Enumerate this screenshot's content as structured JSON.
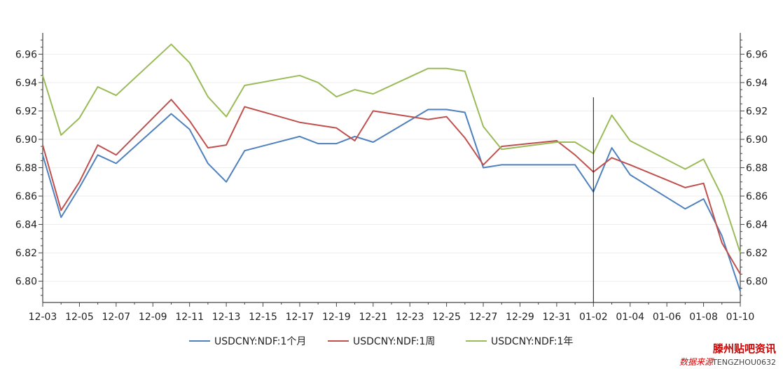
{
  "chart_data": {
    "type": "line",
    "x": [
      "12-03",
      "12-04",
      "12-05",
      "12-06",
      "12-07",
      "12-10",
      "12-11",
      "12-12",
      "12-13",
      "12-14",
      "12-17",
      "12-18",
      "12-19",
      "12-20",
      "12-21",
      "12-24",
      "12-25",
      "12-26",
      "12-27",
      "12-28",
      "12-31",
      "01-01",
      "01-02",
      "01-03",
      "01-04",
      "01-07",
      "01-08",
      "01-09",
      "01-10"
    ],
    "x_index": [
      0,
      1,
      2,
      3,
      4,
      7,
      8,
      9,
      10,
      11,
      14,
      15,
      16,
      17,
      18,
      21,
      22,
      23,
      24,
      25,
      28,
      29,
      30,
      31,
      32,
      35,
      36,
      37,
      38
    ],
    "x_tick_labels": [
      "12-03",
      "12-05",
      "12-07",
      "12-09",
      "12-11",
      "12-13",
      "12-15",
      "12-17",
      "12-19",
      "12-21",
      "12-23",
      "12-25",
      "12-27",
      "12-29",
      "12-31",
      "01-02",
      "01-04",
      "01-06",
      "01-08",
      "01-10"
    ],
    "series": [
      {
        "name": "USDCNY:NDF:1个月",
        "color": "#4f81bd",
        "values": [
          6.889,
          6.845,
          6.866,
          6.889,
          6.883,
          6.918,
          6.907,
          6.883,
          6.87,
          6.892,
          6.902,
          6.897,
          6.897,
          6.902,
          6.898,
          6.921,
          6.921,
          6.919,
          6.88,
          6.882,
          6.882,
          6.882,
          6.863,
          6.894,
          6.875,
          6.851,
          6.858,
          6.832,
          6.793
        ]
      },
      {
        "name": "USDCNY:NDF:1周",
        "color": "#c0504d",
        "values": [
          6.896,
          6.85,
          6.87,
          6.896,
          6.889,
          6.928,
          6.913,
          6.894,
          6.896,
          6.923,
          6.912,
          6.91,
          6.908,
          6.899,
          6.92,
          6.914,
          6.916,
          6.901,
          6.882,
          6.895,
          6.899,
          6.889,
          6.877,
          6.887,
          6.882,
          6.866,
          6.869,
          6.827,
          6.805
        ]
      },
      {
        "name": "USDCNY:NDF:1年",
        "color": "#9bbb59",
        "values": [
          6.945,
          6.903,
          6.915,
          6.937,
          6.931,
          6.967,
          6.954,
          6.93,
          6.916,
          6.938,
          6.945,
          6.94,
          6.93,
          6.935,
          6.932,
          6.95,
          6.95,
          6.948,
          6.909,
          6.893,
          6.898,
          6.898,
          6.89,
          6.917,
          6.899,
          6.879,
          6.886,
          6.86,
          6.82
        ]
      }
    ],
    "y_ticks": [
      "6.80",
      "6.82",
      "6.84",
      "6.86",
      "6.88",
      "6.90",
      "6.92",
      "6.94",
      "6.96"
    ],
    "ylim": [
      6.785,
      6.975
    ],
    "xlim_index": [
      0,
      38
    ],
    "vertical_marker": "01-02",
    "title": "",
    "xlabel": "",
    "ylabel": "",
    "legend_position": "bottom",
    "grid": true
  },
  "watermark": {
    "main": "滕州贴吧资讯",
    "sub": "数据来源",
    "code": "TENGZHOU0632"
  }
}
